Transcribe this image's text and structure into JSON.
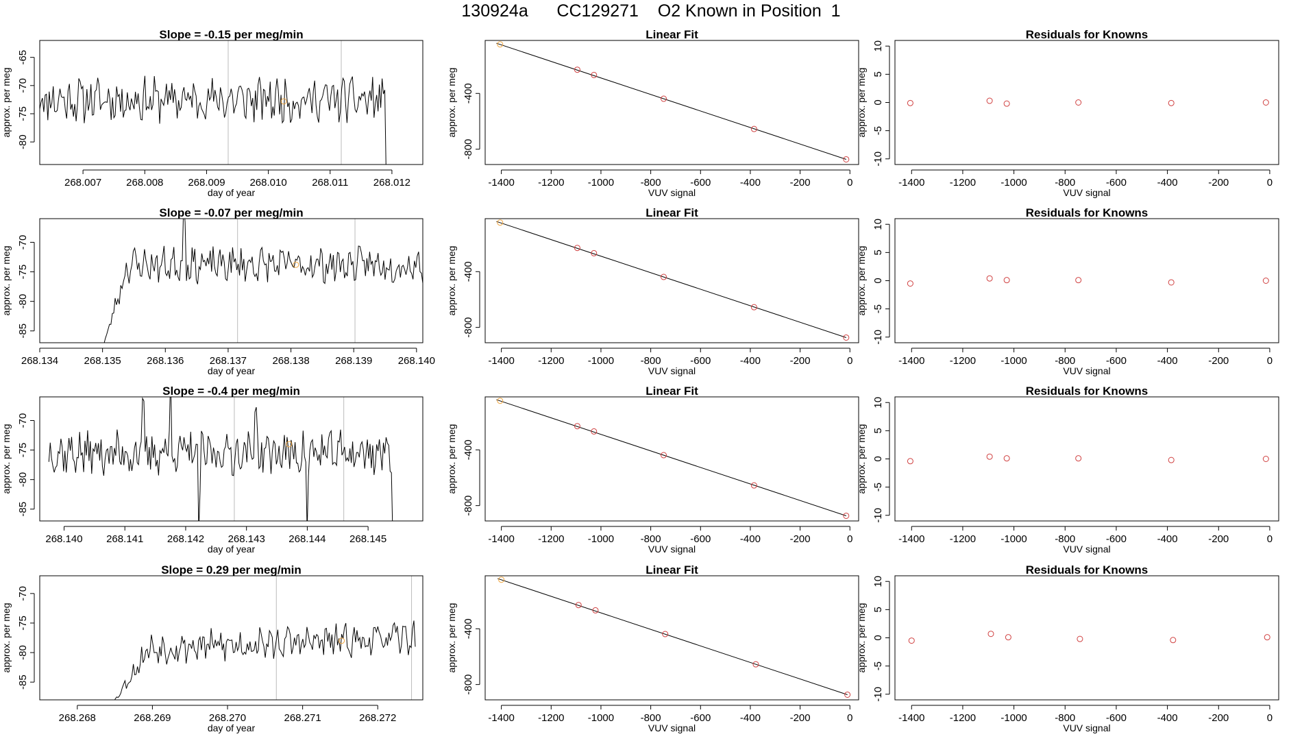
{
  "figure": {
    "title_parts": [
      "130924a",
      "CC129271",
      "O2 Known in Position  1"
    ]
  },
  "colors": {
    "trace": "#000000",
    "point_red": "#d04040",
    "point_orange": "#f0a640",
    "gridline": "#bbbbbb",
    "axis": "#000000"
  },
  "chart_data": [
    {
      "type": "line",
      "row": 1,
      "col": 1,
      "title": "Slope =  -0.15  per meg/min",
      "xlabel": "day of year",
      "ylabel": "approx. per meg",
      "xlim": [
        268.0063,
        268.0125
      ],
      "ylim": [
        -84,
        -62
      ],
      "xticks": [
        268.007,
        268.008,
        268.009,
        268.01,
        268.011,
        268.012
      ],
      "xtick_labels": [
        "268.007",
        "268.008",
        "268.009",
        "268.010",
        "268.011",
        "268.012"
      ],
      "yticks": [
        -65,
        -70,
        -75,
        -80
      ],
      "ytick_labels": [
        "-65",
        "-70",
        "-75",
        "-80"
      ],
      "vlines": [
        268.00935,
        268.01118
      ],
      "marker": {
        "x": 268.01025,
        "y": -72.8
      },
      "trace": {
        "start": 268.0063,
        "end": 268.01195,
        "n": 260,
        "mean": -72.5,
        "amp": 3.2,
        "seed": 11,
        "ramp_start": null,
        "ramp_from": null,
        "drop_end": -86,
        "spikes": []
      }
    },
    {
      "type": "scatter",
      "row": 1,
      "col": 2,
      "title": "Linear Fit",
      "xlabel": "VUV signal",
      "ylabel": "approx. per meg",
      "xlim": [
        -1465,
        35
      ],
      "ylim": [
        -910,
        -20
      ],
      "xticks": [
        -1400,
        -1200,
        -1000,
        -800,
        -600,
        -400,
        -200,
        0
      ],
      "xtick_labels": [
        "-1400",
        "-1200",
        "-1000",
        "-800",
        "-600",
        "-400",
        "-200",
        "0"
      ],
      "yticks": [
        -400,
        -800
      ],
      "ytick_labels": [
        "-400",
        "-800"
      ],
      "x": [
        -1405,
        -1095,
        -1028,
        -748,
        -385,
        -15
      ],
      "y": [
        -48,
        -230,
        -268,
        -438,
        -655,
        -873
      ],
      "fit": {
        "x": [
          -1420,
          -15
        ],
        "y": [
          -40,
          -873
        ]
      }
    },
    {
      "type": "scatter",
      "row": 1,
      "col": 3,
      "title": "Residuals for Knowns",
      "xlabel": "VUV signal",
      "ylabel": "approx. per meg",
      "xlim": [
        -1465,
        35
      ],
      "ylim": [
        -11,
        11
      ],
      "xticks": [
        -1400,
        -1200,
        -1000,
        -800,
        -600,
        -400,
        -200,
        0
      ],
      "xtick_labels": [
        "-1400",
        "-1200",
        "-1000",
        "-800",
        "-600",
        "-400",
        "-200",
        "0"
      ],
      "yticks": [
        10,
        5,
        0,
        -5,
        -10
      ],
      "ytick_labels": [
        "10",
        "5",
        "0",
        "-5",
        "-10"
      ],
      "x": [
        -1405,
        -1095,
        -1028,
        -748,
        -385,
        -15
      ],
      "y": [
        -0.1,
        0.3,
        -0.2,
        0.0,
        -0.1,
        0.0
      ]
    },
    {
      "type": "line",
      "row": 2,
      "col": 1,
      "title": "Slope =  -0.07  per meg/min",
      "xlabel": "day of year",
      "ylabel": "approx. per meg",
      "xlim": [
        268.134,
        268.1401
      ],
      "ylim": [
        -87,
        -66
      ],
      "xticks": [
        268.134,
        268.135,
        268.136,
        268.137,
        268.138,
        268.139,
        268.14
      ],
      "xtick_labels": [
        "268.134",
        "268.135",
        "268.136",
        "268.137",
        "268.138",
        "268.139",
        "268.140"
      ],
      "yticks": [
        -70,
        -75,
        -80,
        -85
      ],
      "ytick_labels": [
        "-70",
        "-75",
        "-80",
        "-85"
      ],
      "vlines": [
        268.13715,
        268.13902
      ],
      "marker": {
        "x": 268.13808,
        "y": -73.8
      },
      "trace": {
        "start": 268.135,
        "end": 268.1401,
        "n": 230,
        "mean": -73.8,
        "amp": 2.4,
        "seed": 23,
        "ramp_start": 268.1354,
        "ramp_from": -88,
        "drop_end": null,
        "spikes": [
          [
            268.1363,
            -58
          ]
        ]
      }
    },
    {
      "type": "scatter",
      "row": 2,
      "col": 2,
      "title": "Linear Fit",
      "xlabel": "VUV signal",
      "ylabel": "approx. per meg",
      "xlim": [
        -1465,
        35
      ],
      "ylim": [
        -910,
        -20
      ],
      "xticks": [
        -1400,
        -1200,
        -1000,
        -800,
        -600,
        -400,
        -200,
        0
      ],
      "xtick_labels": [
        "-1400",
        "-1200",
        "-1000",
        "-800",
        "-600",
        "-400",
        "-200",
        "0"
      ],
      "yticks": [
        -400,
        -800
      ],
      "ytick_labels": [
        "-400",
        "-800"
      ],
      "x": [
        -1405,
        -1095,
        -1028,
        -748,
        -385,
        -15
      ],
      "y": [
        -48,
        -230,
        -268,
        -438,
        -655,
        -873
      ],
      "fit": {
        "x": [
          -1420,
          -15
        ],
        "y": [
          -40,
          -873
        ]
      }
    },
    {
      "type": "scatter",
      "row": 2,
      "col": 3,
      "title": "Residuals for Knowns",
      "xlabel": "VUV signal",
      "ylabel": "approx. per meg",
      "xlim": [
        -1465,
        35
      ],
      "ylim": [
        -11,
        11
      ],
      "xticks": [
        -1400,
        -1200,
        -1000,
        -800,
        -600,
        -400,
        -200,
        0
      ],
      "xtick_labels": [
        "-1400",
        "-1200",
        "-1000",
        "-800",
        "-600",
        "-400",
        "-200",
        "0"
      ],
      "yticks": [
        10,
        5,
        0,
        -5,
        -10
      ],
      "ytick_labels": [
        "10",
        "5",
        "0",
        "-5",
        "-10"
      ],
      "x": [
        -1405,
        -1095,
        -1028,
        -748,
        -385,
        -15
      ],
      "y": [
        -0.5,
        0.4,
        0.1,
        0.1,
        -0.3,
        0.0
      ]
    },
    {
      "type": "line",
      "row": 3,
      "col": 1,
      "title": "Slope =  -0.4  per meg/min",
      "xlabel": "day of year",
      "ylabel": "approx. per meg",
      "xlim": [
        268.1396,
        268.1459
      ],
      "ylim": [
        -87,
        -66
      ],
      "xticks": [
        268.14,
        268.141,
        268.142,
        268.143,
        268.144,
        268.145
      ],
      "xtick_labels": [
        "268.140",
        "268.141",
        "268.142",
        "268.143",
        "268.144",
        "268.145"
      ],
      "yticks": [
        -70,
        -75,
        -80,
        -85
      ],
      "ytick_labels": [
        "-70",
        "-75",
        "-80",
        "-85"
      ],
      "vlines": [
        268.1428,
        268.1446
      ],
      "marker": {
        "x": 268.1437,
        "y": -74.0
      },
      "trace": {
        "start": 268.13975,
        "end": 268.14545,
        "n": 260,
        "mean": -75.5,
        "amp": 3.0,
        "seed": 37,
        "ramp_start": null,
        "ramp_from": null,
        "drop_end": -90,
        "spikes": [
          [
            268.1413,
            -62
          ],
          [
            268.14175,
            -60
          ],
          [
            268.14222,
            -92
          ],
          [
            268.14315,
            -62
          ],
          [
            268.144,
            -90
          ]
        ]
      }
    },
    {
      "type": "scatter",
      "row": 3,
      "col": 2,
      "title": "Linear Fit",
      "xlabel": "VUV signal",
      "ylabel": "approx. per meg",
      "xlim": [
        -1465,
        35
      ],
      "ylim": [
        -910,
        -20
      ],
      "xticks": [
        -1400,
        -1200,
        -1000,
        -800,
        -600,
        -400,
        -200,
        0
      ],
      "xtick_labels": [
        "-1400",
        "-1200",
        "-1000",
        "-800",
        "-600",
        "-400",
        "-200",
        "0"
      ],
      "yticks": [
        -400,
        -800
      ],
      "ytick_labels": [
        "-400",
        "-800"
      ],
      "x": [
        -1405,
        -1095,
        -1028,
        -748,
        -385,
        -15
      ],
      "y": [
        -48,
        -230,
        -268,
        -438,
        -655,
        -873
      ],
      "fit": {
        "x": [
          -1420,
          -15
        ],
        "y": [
          -40,
          -873
        ]
      }
    },
    {
      "type": "scatter",
      "row": 3,
      "col": 3,
      "title": "Residuals for Knowns",
      "xlabel": "VUV signal",
      "ylabel": "approx. per meg",
      "xlim": [
        -1465,
        35
      ],
      "ylim": [
        -11,
        11
      ],
      "xticks": [
        -1400,
        -1200,
        -1000,
        -800,
        -600,
        -400,
        -200,
        0
      ],
      "xtick_labels": [
        "-1400",
        "-1200",
        "-1000",
        "-800",
        "-600",
        "-400",
        "-200",
        "0"
      ],
      "yticks": [
        10,
        5,
        0,
        -5,
        -10
      ],
      "ytick_labels": [
        "10",
        "5",
        "0",
        "-5",
        "-10"
      ],
      "x": [
        -1405,
        -1095,
        -1028,
        -748,
        -385,
        -15
      ],
      "y": [
        -0.4,
        0.4,
        0.1,
        0.1,
        -0.2,
        0.0
      ]
    },
    {
      "type": "line",
      "row": 4,
      "col": 1,
      "title": "Slope =  0.29  per meg/min",
      "xlabel": "day of year",
      "ylabel": "approx. per meg",
      "xlim": [
        268.2675,
        268.2726
      ],
      "ylim": [
        -88,
        -67
      ],
      "xticks": [
        268.268,
        268.269,
        268.27,
        268.271,
        268.272
      ],
      "xtick_labels": [
        "268.268",
        "268.269",
        "268.270",
        "268.271",
        "268.272"
      ],
      "yticks": [
        -70,
        -75,
        -80,
        -85
      ],
      "ytick_labels": [
        "-70",
        "-75",
        "-80",
        "-85"
      ],
      "vlines": [
        268.27065,
        268.27245
      ],
      "marker": {
        "x": 268.27152,
        "y": -78.0
      },
      "trace": {
        "start": 268.26845,
        "end": 268.2725,
        "n": 220,
        "mean": -78.5,
        "amp": 2.2,
        "seed": 53,
        "ramp_start": 268.26895,
        "ramp_from": -89,
        "drop_end": null,
        "spikes": [],
        "trend": 2.0
      }
    },
    {
      "type": "scatter",
      "row": 4,
      "col": 2,
      "title": "Linear Fit",
      "xlabel": "VUV signal",
      "ylabel": "approx. per meg",
      "xlim": [
        -1465,
        35
      ],
      "ylim": [
        -910,
        -20
      ],
      "xticks": [
        -1400,
        -1200,
        -1000,
        -800,
        -600,
        -400,
        -200,
        0
      ],
      "xtick_labels": [
        "-1400",
        "-1200",
        "-1000",
        "-800",
        "-600",
        "-400",
        "-200",
        "0"
      ],
      "yticks": [
        -400,
        -800
      ],
      "ytick_labels": [
        "-400",
        "-800"
      ],
      "x": [
        -1400,
        -1090,
        -1022,
        -742,
        -378,
        -10
      ],
      "y": [
        -48,
        -230,
        -268,
        -438,
        -655,
        -873
      ],
      "fit": {
        "x": [
          -1415,
          -10
        ],
        "y": [
          -40,
          -873
        ]
      }
    },
    {
      "type": "scatter",
      "row": 4,
      "col": 3,
      "title": "Residuals for Knowns",
      "xlabel": "VUV signal",
      "ylabel": "approx. per meg",
      "xlim": [
        -1465,
        35
      ],
      "ylim": [
        -11,
        11
      ],
      "xticks": [
        -1400,
        -1200,
        -1000,
        -800,
        -600,
        -400,
        -200,
        0
      ],
      "xtick_labels": [
        "-1400",
        "-1200",
        "-1000",
        "-800",
        "-600",
        "-400",
        "-200",
        "0"
      ],
      "yticks": [
        10,
        5,
        0,
        -5,
        -10
      ],
      "ytick_labels": [
        "10",
        "5",
        "0",
        "-5",
        "-10"
      ],
      "x": [
        -1400,
        -1090,
        -1022,
        -742,
        -378,
        -10
      ],
      "y": [
        -0.5,
        0.7,
        0.1,
        -0.2,
        -0.4,
        0.1
      ]
    }
  ]
}
